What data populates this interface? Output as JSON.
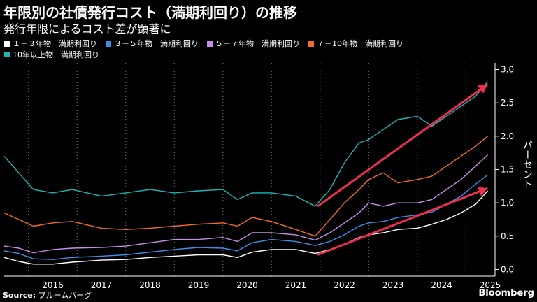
{
  "header": {
    "title": "年限別の社債発行コスト（満期利回り）の推移",
    "subtitle": "発行年限によるコスト差が顕著に"
  },
  "footer": {
    "source_label": "Source:",
    "source_value": "ブルームバーグ",
    "logo": "Bloomberg"
  },
  "chart_data": {
    "type": "line",
    "title": "年限別の社債発行コスト（満期利回り）の推移",
    "subtitle": "発行年限によるコスト差が顕著に",
    "ylabel": "パーセント",
    "xlabel": "",
    "xlim": [
      2015.5,
      2025.6
    ],
    "ylim": [
      -0.1,
      3.1
    ],
    "y_ticks": [
      0.0,
      0.5,
      1.0,
      1.5,
      2.0,
      2.5,
      3.0
    ],
    "y_tick_labels": [
      "0.0",
      "0.5",
      "1.0",
      "1.5",
      "2.0",
      "2.5",
      "3.0"
    ],
    "x_tick_labels": [
      "2016",
      "2017",
      "2018",
      "2019",
      "2020",
      "2021",
      "2022",
      "2023",
      "2024",
      "2025"
    ],
    "grid": "vertical dotted",
    "legend_position": "top",
    "series": [
      {
        "name": "１－３年物　満期利回り",
        "color": "#ffffff",
        "x": [
          2015.5,
          2015.8,
          2016.1,
          2016.5,
          2016.9,
          2017.5,
          2018.0,
          2018.5,
          2019.0,
          2019.5,
          2020.0,
          2020.3,
          2020.6,
          2021.0,
          2021.5,
          2021.9,
          2022.2,
          2022.5,
          2022.8,
          2023.0,
          2023.3,
          2023.6,
          2024.0,
          2024.3,
          2024.6,
          2024.9,
          2025.2,
          2025.45
        ],
        "y": [
          0.18,
          0.12,
          0.08,
          0.08,
          0.11,
          0.14,
          0.15,
          0.18,
          0.2,
          0.22,
          0.22,
          0.18,
          0.26,
          0.3,
          0.3,
          0.24,
          0.3,
          0.38,
          0.48,
          0.52,
          0.55,
          0.6,
          0.62,
          0.68,
          0.75,
          0.85,
          0.98,
          1.18
        ]
      },
      {
        "name": "３－５年物　満期利回り",
        "color": "#3d8fe8",
        "x": [
          2015.5,
          2015.8,
          2016.1,
          2016.5,
          2016.9,
          2017.5,
          2018.0,
          2018.5,
          2019.0,
          2019.5,
          2020.0,
          2020.3,
          2020.6,
          2021.0,
          2021.5,
          2021.9,
          2022.2,
          2022.5,
          2022.8,
          2023.0,
          2023.3,
          2023.6,
          2024.0,
          2024.3,
          2024.6,
          2024.9,
          2025.2,
          2025.45
        ],
        "y": [
          0.28,
          0.24,
          0.16,
          0.15,
          0.18,
          0.2,
          0.22,
          0.26,
          0.3,
          0.33,
          0.32,
          0.28,
          0.4,
          0.45,
          0.42,
          0.36,
          0.42,
          0.52,
          0.65,
          0.7,
          0.72,
          0.78,
          0.82,
          0.86,
          0.98,
          1.1,
          1.28,
          1.42
        ]
      },
      {
        "name": "５－７年物　満期利回り",
        "color": "#c98ee8",
        "x": [
          2015.5,
          2015.8,
          2016.1,
          2016.5,
          2016.9,
          2017.5,
          2018.0,
          2018.5,
          2019.0,
          2019.5,
          2020.0,
          2020.3,
          2020.6,
          2021.0,
          2021.5,
          2021.9,
          2022.2,
          2022.5,
          2022.8,
          2023.0,
          2023.3,
          2023.6,
          2024.0,
          2024.3,
          2024.6,
          2024.9,
          2025.2,
          2025.45
        ],
        "y": [
          0.35,
          0.32,
          0.25,
          0.3,
          0.32,
          0.33,
          0.35,
          0.4,
          0.45,
          0.45,
          0.48,
          0.42,
          0.55,
          0.55,
          0.52,
          0.44,
          0.55,
          0.7,
          0.85,
          1.0,
          0.95,
          1.0,
          1.0,
          1.05,
          1.2,
          1.35,
          1.55,
          1.72
        ]
      },
      {
        "name": "７－10年物　満期利回り",
        "color": "#f26a2e",
        "x": [
          2015.5,
          2015.8,
          2016.1,
          2016.5,
          2016.9,
          2017.5,
          2018.0,
          2018.5,
          2019.0,
          2019.5,
          2020.0,
          2020.3,
          2020.6,
          2021.0,
          2021.5,
          2021.9,
          2022.2,
          2022.5,
          2022.8,
          2023.0,
          2023.3,
          2023.6,
          2024.0,
          2024.3,
          2024.6,
          2024.9,
          2025.2,
          2025.45
        ],
        "y": [
          0.85,
          0.75,
          0.65,
          0.7,
          0.72,
          0.62,
          0.6,
          0.62,
          0.65,
          0.68,
          0.7,
          0.65,
          0.78,
          0.72,
          0.6,
          0.5,
          0.75,
          1.0,
          1.2,
          1.35,
          1.45,
          1.3,
          1.35,
          1.4,
          1.55,
          1.7,
          1.85,
          2.0
        ]
      },
      {
        "name": "10年以上物　満期利回り",
        "color": "#20b5b5",
        "x": [
          2015.5,
          2015.8,
          2016.1,
          2016.5,
          2016.9,
          2017.5,
          2018.0,
          2018.5,
          2019.0,
          2019.5,
          2020.0,
          2020.3,
          2020.6,
          2021.0,
          2021.5,
          2021.9,
          2022.2,
          2022.5,
          2022.8,
          2023.0,
          2023.3,
          2023.6,
          2024.0,
          2024.3,
          2024.6,
          2024.9,
          2025.2,
          2025.45
        ],
        "y": [
          1.7,
          1.45,
          1.2,
          1.15,
          1.2,
          1.1,
          1.15,
          1.2,
          1.15,
          1.18,
          1.2,
          1.05,
          1.15,
          1.15,
          1.1,
          0.95,
          1.2,
          1.6,
          1.9,
          1.95,
          2.1,
          2.25,
          2.3,
          2.15,
          2.3,
          2.45,
          2.6,
          2.82
        ]
      }
    ],
    "annotations": [
      {
        "type": "arrow",
        "color": "#ee2f52",
        "from": [
          2021.95,
          0.95
        ],
        "to": [
          2025.45,
          2.78
        ]
      },
      {
        "type": "arrow",
        "color": "#ee2f52",
        "from": [
          2021.95,
          0.22
        ],
        "to": [
          2025.45,
          1.22
        ]
      }
    ]
  }
}
